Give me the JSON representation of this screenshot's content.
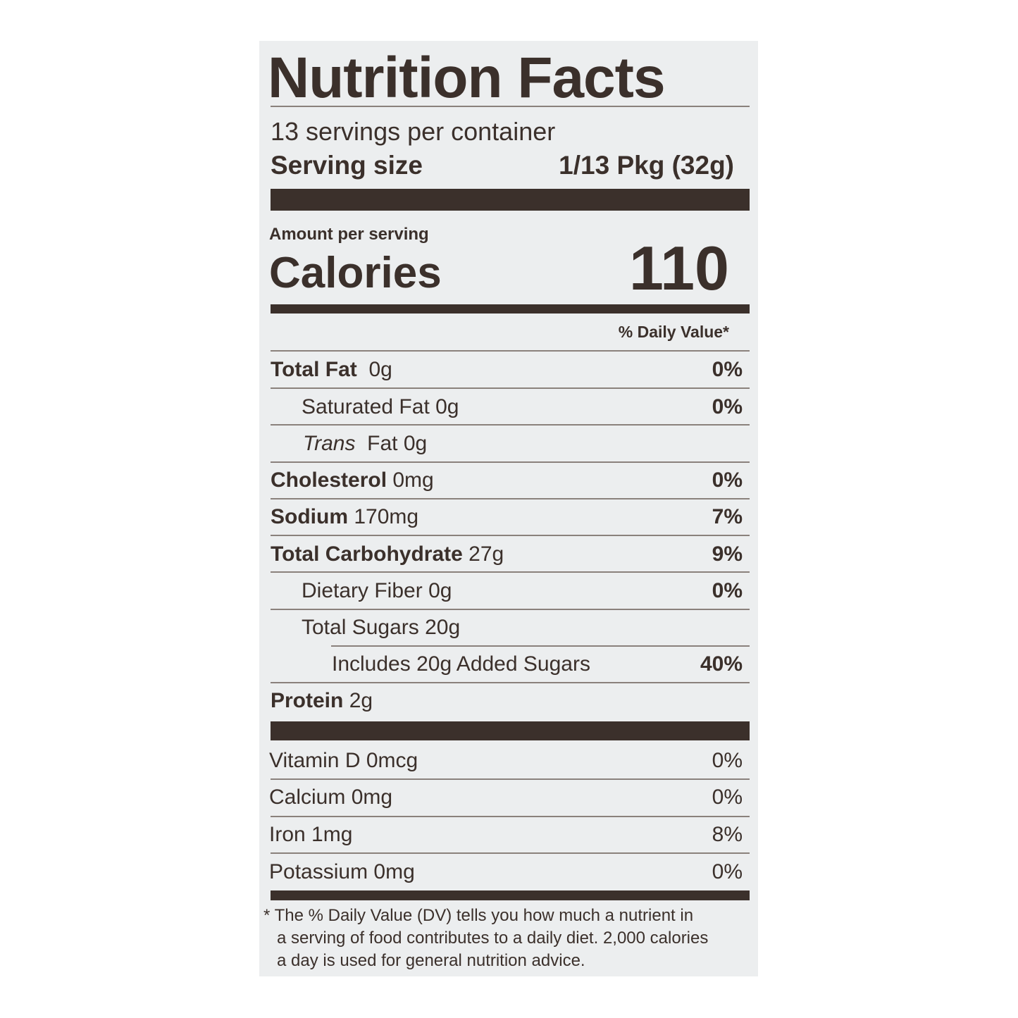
{
  "title": "Nutrition Facts",
  "servings_per_container": "13 servings per container",
  "serving_size_label": "Serving size",
  "serving_size_value": "1/13 Pkg (32g)",
  "amount_per_serving": "Amount per serving",
  "calories_label": "Calories",
  "calories_value": "110",
  "daily_value_header": "% Daily Value*",
  "nutrients": [
    {
      "name": "Total Fat",
      "amount": "0g",
      "dv": "0%"
    },
    {
      "name": "Saturated Fat",
      "amount": "0g",
      "dv": "0%"
    },
    {
      "name": "Trans",
      "amount": "Fat 0g",
      "dv": ""
    },
    {
      "name": "Cholesterol",
      "amount": "0mg",
      "dv": "0%"
    },
    {
      "name": "Sodium",
      "amount": "170mg",
      "dv": "7%"
    },
    {
      "name": "Total Carbohydrate",
      "amount": "27g",
      "dv": "9%"
    },
    {
      "name": "Dietary Fiber",
      "amount": "0g",
      "dv": "0%"
    },
    {
      "name": "Total Sugars",
      "amount": "20g",
      "dv": ""
    },
    {
      "name": "Includes 20g Added Sugars",
      "amount": "",
      "dv": "40%"
    },
    {
      "name": "Protein",
      "amount": "2g",
      "dv": ""
    }
  ],
  "vitamins": [
    {
      "name": "Vitamin D 0mcg",
      "dv": "0%"
    },
    {
      "name": "Calcium 0mg",
      "dv": "0%"
    },
    {
      "name": "Iron 1mg",
      "dv": "8%"
    },
    {
      "name": "Potassium 0mg",
      "dv": "0%"
    }
  ],
  "footnote": [
    "* The % Daily Value (DV) tells you how much a nutrient in",
    "a serving of food contributes to a daily diet. 2,000 calories",
    "a day is used for general nutrition advice."
  ],
  "colors": {
    "ink": "#3b302b",
    "background": "#eceeef"
  }
}
